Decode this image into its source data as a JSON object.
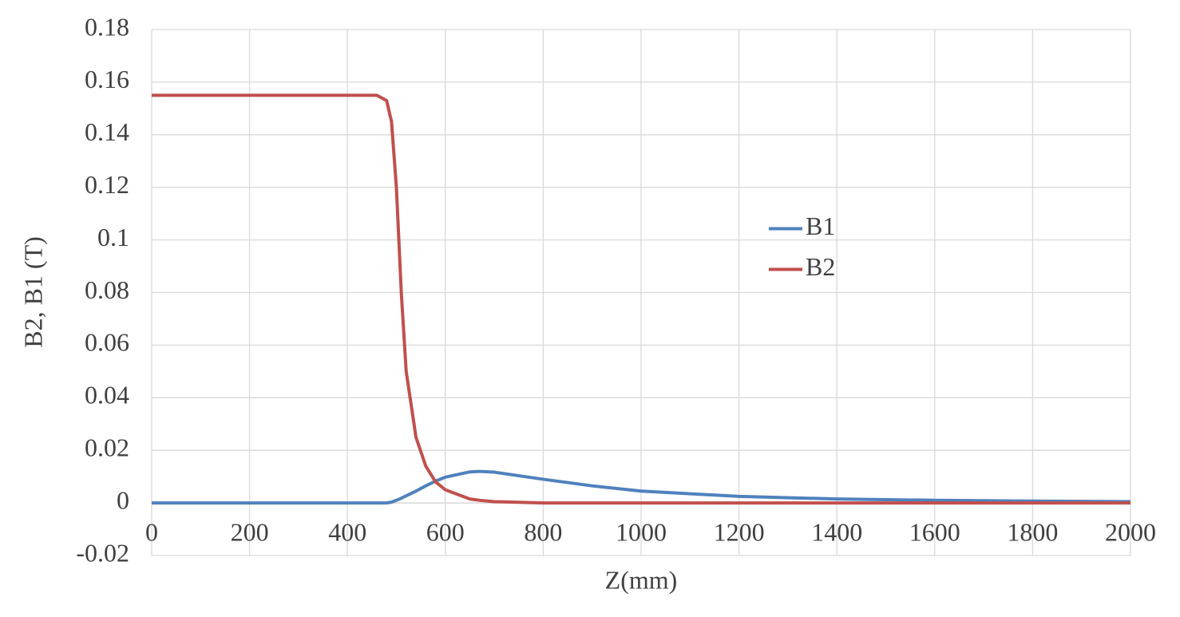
{
  "chart_data": {
    "type": "line",
    "x_label": "Z(mm)",
    "y_label": "B2, B1 (T)",
    "x": [
      0,
      200,
      400,
      460,
      480,
      490,
      500,
      510,
      520,
      540,
      560,
      580,
      600,
      650,
      670,
      700,
      800,
      900,
      1000,
      1200,
      1400,
      1600,
      1800,
      2000
    ],
    "series": [
      {
        "name": "B1",
        "color": "#4f81bd",
        "values": [
          0,
          0,
          0,
          0,
          0,
          0.0003,
          0.001,
          0.0018,
          0.0027,
          0.0045,
          0.0065,
          0.0083,
          0.0098,
          0.0118,
          0.012,
          0.0117,
          0.009,
          0.0065,
          0.0045,
          0.0025,
          0.0015,
          0.001,
          0.0007,
          0.0005
        ]
      },
      {
        "name": "B2",
        "color": "#c0504d",
        "values": [
          0.155,
          0.155,
          0.155,
          0.155,
          0.153,
          0.145,
          0.12,
          0.08,
          0.05,
          0.025,
          0.014,
          0.008,
          0.005,
          0.0015,
          0.001,
          0.0005,
          0,
          0,
          0,
          0,
          0,
          0,
          0,
          0
        ]
      }
    ],
    "xlim": [
      0,
      2000
    ],
    "xticks": [
      0,
      200,
      400,
      600,
      800,
      1000,
      1200,
      1400,
      1600,
      1800,
      2000
    ],
    "ylim": [
      -0.02,
      0.18
    ],
    "yticks": [
      -0.02,
      0,
      0.02,
      0.04,
      0.06,
      0.08,
      0.1,
      0.12,
      0.14,
      0.16,
      0.18
    ],
    "grid": true,
    "legend": "center-right"
  }
}
